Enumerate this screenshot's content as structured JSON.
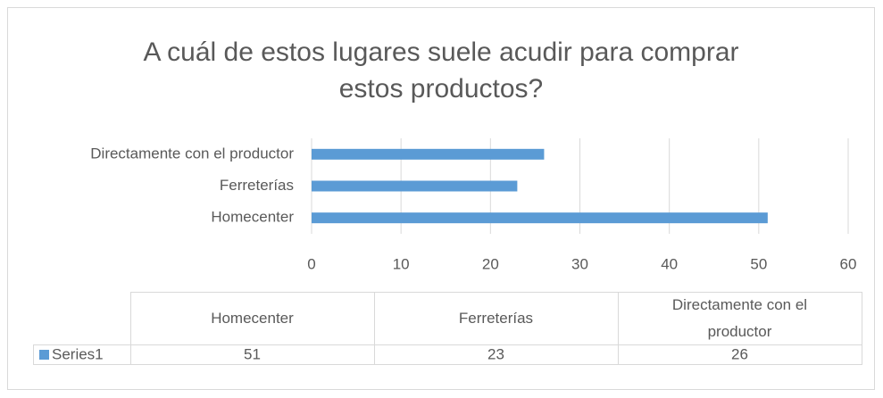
{
  "chart_data": {
    "type": "bar",
    "orientation": "horizontal",
    "title": "A cuál de estos lugares suele acudir para comprar estos productos?",
    "categories": [
      "Homecenter",
      "Ferreterías",
      "Directamente con el productor"
    ],
    "series": [
      {
        "name": "Series1",
        "color": "#5b9bd5",
        "values": [
          51,
          23,
          26
        ]
      }
    ],
    "xlim": [
      0,
      60
    ],
    "xticks": [
      0,
      10,
      20,
      30,
      40,
      50,
      60
    ],
    "grid": true,
    "data_table": true
  }
}
